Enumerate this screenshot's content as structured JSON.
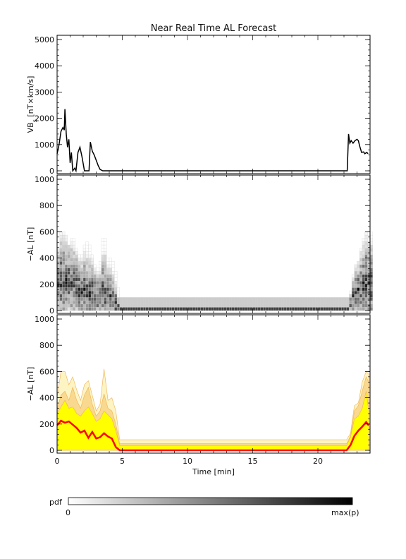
{
  "title": "Near Real Time AL Forecast",
  "chart_data": [
    {
      "type": "line",
      "ylabel": "VBs [nT×km/s]",
      "ylabel_main": "VB",
      "ylabel_sub": "s",
      "ylabel_rest": " [nT×km/s]",
      "xlim": [
        0,
        24
      ],
      "ylim": [
        0,
        5000
      ],
      "yticks": [
        0,
        1000,
        2000,
        3000,
        4000,
        5000
      ],
      "series": [
        {
          "color": "#000000",
          "points": [
            [
              0.0,
              650
            ],
            [
              0.15,
              1000
            ],
            [
              0.3,
              1500
            ],
            [
              0.45,
              1650
            ],
            [
              0.55,
              1550
            ],
            [
              0.6,
              2350
            ],
            [
              0.7,
              1400
            ],
            [
              0.8,
              900
            ],
            [
              0.9,
              1200
            ],
            [
              1.0,
              300
            ],
            [
              1.1,
              700
            ],
            [
              1.2,
              0
            ],
            [
              1.35,
              100
            ],
            [
              1.45,
              0
            ],
            [
              1.6,
              700
            ],
            [
              1.75,
              900
            ],
            [
              1.9,
              550
            ],
            [
              2.1,
              0
            ],
            [
              2.3,
              0
            ],
            [
              2.45,
              0
            ],
            [
              2.55,
              1100
            ],
            [
              2.7,
              750
            ],
            [
              2.85,
              600
            ],
            [
              3.0,
              400
            ],
            [
              3.15,
              200
            ],
            [
              3.3,
              50
            ],
            [
              3.5,
              0
            ],
            [
              3.7,
              0
            ],
            [
              3.8,
              0
            ],
            [
              22.25,
              0
            ],
            [
              22.35,
              1400
            ],
            [
              22.45,
              1050
            ],
            [
              22.55,
              1150
            ],
            [
              22.7,
              1050
            ],
            [
              22.85,
              1150
            ],
            [
              23.0,
              1200
            ],
            [
              23.1,
              1150
            ],
            [
              23.2,
              950
            ],
            [
              23.35,
              700
            ],
            [
              23.5,
              720
            ],
            [
              23.6,
              650
            ],
            [
              23.75,
              700
            ],
            [
              23.85,
              650
            ]
          ]
        }
      ]
    },
    {
      "type": "heatmap",
      "ylabel": "−AL [nT]",
      "xlim": [
        0,
        24
      ],
      "ylim": [
        0,
        1000
      ],
      "yticks": [
        0,
        200,
        400,
        600,
        800,
        1000
      ],
      "colorscale": [
        "#ffffff",
        "#000000"
      ]
    },
    {
      "type": "area",
      "ylabel": "−AL [nT]",
      "xlabel": "Time [min]",
      "xlim": [
        0,
        24
      ],
      "ylim": [
        0,
        1000
      ],
      "yticks": [
        0,
        200,
        400,
        600,
        800,
        1000
      ],
      "xticks": [
        0,
        5,
        10,
        15,
        20
      ],
      "x": [
        0,
        0.3,
        0.6,
        0.9,
        1.2,
        1.5,
        1.8,
        2.1,
        2.4,
        2.7,
        3.0,
        3.3,
        3.6,
        3.9,
        4.2,
        4.5,
        4.8,
        5.5,
        10,
        15,
        20,
        22.2,
        22.5,
        22.8,
        23.1,
        23.4,
        23.7,
        23.9
      ],
      "series": [
        {
          "name_hidden": "band-outer",
          "color": "#fdf4c4",
          "values": [
            400,
            600,
            600,
            500,
            560,
            460,
            380,
            500,
            530,
            420,
            300,
            350,
            620,
            380,
            400,
            300,
            80,
            80,
            80,
            80,
            80,
            80,
            130,
            340,
            360,
            520,
            600,
            580
          ]
        },
        {
          "name_hidden": "band-mid",
          "color": "#f9d98f",
          "values": [
            310,
            420,
            450,
            380,
            480,
            380,
            320,
            420,
            480,
            350,
            260,
            300,
            430,
            320,
            300,
            200,
            50,
            50,
            50,
            50,
            50,
            50,
            110,
            300,
            340,
            450,
            560,
            520
          ]
        },
        {
          "name_hidden": "band-inner",
          "color": "#ffff00",
          "values": [
            280,
            330,
            380,
            320,
            330,
            280,
            260,
            300,
            330,
            280,
            220,
            240,
            300,
            270,
            240,
            150,
            35,
            35,
            35,
            35,
            35,
            35,
            100,
            240,
            260,
            320,
            450,
            300
          ]
        },
        {
          "name_hidden": "median",
          "color": "#ff0000",
          "values": [
            190,
            225,
            210,
            220,
            195,
            170,
            135,
            150,
            95,
            140,
            90,
            100,
            130,
            105,
            90,
            25,
            0,
            0,
            0,
            0,
            0,
            0,
            40,
            110,
            150,
            180,
            215,
            190
          ]
        }
      ]
    }
  ],
  "colorbar": {
    "label": "pdf",
    "min_label": "0",
    "max_label": "max(p)",
    "colors": [
      "#ffffff",
      "#000000"
    ]
  }
}
